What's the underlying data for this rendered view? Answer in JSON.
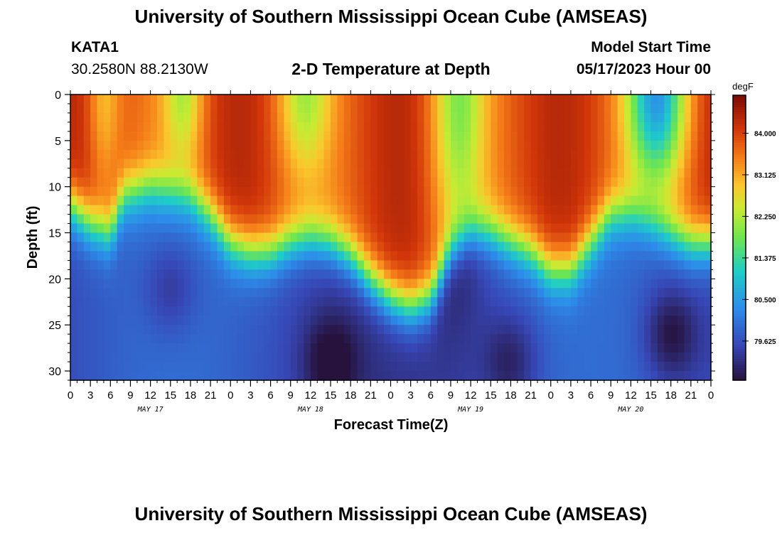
{
  "page": {
    "title": "University of Southern Mississippi Ocean Cube (AMSEAS)",
    "title_repeat": "University of Southern Mississippi Ocean Cube (AMSEAS)",
    "station_id": "KATA1",
    "station_coords": "30.2580N  88.2130W",
    "model_start_label": "Model Start Time",
    "model_start_value": "05/17/2023 Hour 00"
  },
  "chart_data": {
    "type": "heatmap",
    "title": "2-D Temperature at Depth",
    "xlabel": "Forecast Time(Z)",
    "ylabel": "Depth (ft)",
    "units": "degF",
    "x_hours_range": [
      0,
      96
    ],
    "y_depth_range": [
      0,
      31
    ],
    "x_tick_labels": [
      "0",
      "3",
      "6",
      "9",
      "12",
      "15",
      "18",
      "21",
      "0",
      "3",
      "6",
      "9",
      "12",
      "15",
      "18",
      "21",
      "0",
      "3",
      "6",
      "9",
      "12",
      "15",
      "18",
      "21",
      "0",
      "3",
      "6",
      "9",
      "12",
      "15",
      "18",
      "21",
      "0"
    ],
    "x_tick_hours": [
      0,
      3,
      6,
      9,
      12,
      15,
      18,
      21,
      24,
      27,
      30,
      33,
      36,
      39,
      42,
      45,
      48,
      51,
      54,
      57,
      60,
      63,
      66,
      69,
      72,
      75,
      78,
      81,
      84,
      87,
      90,
      93,
      96
    ],
    "day_labels": [
      {
        "label": "MAY 17",
        "hour": 12
      },
      {
        "label": "MAY 18",
        "hour": 36
      },
      {
        "label": "MAY 19",
        "hour": 60
      },
      {
        "label": "MAY 20",
        "hour": 84
      }
    ],
    "y_tick_values": [
      0,
      5,
      10,
      15,
      20,
      25,
      30
    ],
    "y_tick_labels": [
      "0",
      "5",
      "10",
      "15",
      "20",
      "25",
      "30"
    ],
    "colorbar": {
      "label": "degF",
      "range": [
        78.8,
        84.8
      ],
      "tick_values": [
        84.0,
        83.125,
        82.25,
        81.375,
        80.5,
        79.625
      ],
      "tick_labels": [
        "84.000",
        "83.125",
        "82.250",
        "81.375",
        "80.500",
        "79.625"
      ]
    },
    "thermocline_depth_ft": [
      {
        "hour": 0,
        "depth": 12
      },
      {
        "hour": 3,
        "depth": 14
      },
      {
        "hour": 6,
        "depth": 15
      },
      {
        "hour": 8,
        "depth": 11
      },
      {
        "hour": 12,
        "depth": 10
      },
      {
        "hour": 18,
        "depth": 11
      },
      {
        "hour": 21,
        "depth": 13
      },
      {
        "hour": 24,
        "depth": 16
      },
      {
        "hour": 27,
        "depth": 17
      },
      {
        "hour": 30,
        "depth": 17
      },
      {
        "hour": 33,
        "depth": 16
      },
      {
        "hour": 36,
        "depth": 15.5
      },
      {
        "hour": 39,
        "depth": 16
      },
      {
        "hour": 42,
        "depth": 17.5
      },
      {
        "hour": 45,
        "depth": 20
      },
      {
        "hour": 48,
        "depth": 22
      },
      {
        "hour": 51,
        "depth": 23
      },
      {
        "hour": 54,
        "depth": 22
      },
      {
        "hour": 57,
        "depth": 17
      },
      {
        "hour": 60,
        "depth": 15
      },
      {
        "hour": 63,
        "depth": 15
      },
      {
        "hour": 66,
        "depth": 16
      },
      {
        "hour": 69,
        "depth": 17
      },
      {
        "hour": 72,
        "depth": 19
      },
      {
        "hour": 75,
        "depth": 19
      },
      {
        "hour": 78,
        "depth": 16
      },
      {
        "hour": 81,
        "depth": 13
      },
      {
        "hour": 84,
        "depth": 13
      },
      {
        "hour": 87,
        "depth": 14
      },
      {
        "hour": 90,
        "depth": 15
      },
      {
        "hour": 93,
        "depth": 16
      },
      {
        "hour": 96,
        "depth": 16
      }
    ],
    "surface_cool_bands": [
      {
        "hour": 5,
        "width": 2.5,
        "depth": 11,
        "strength": 0.35
      },
      {
        "hour": 17,
        "width": 3,
        "depth": 8,
        "strength": 0.45
      },
      {
        "hour": 35,
        "width": 4,
        "depth": 9,
        "strength": 0.45
      },
      {
        "hour": 58,
        "width": 4,
        "depth": 17,
        "strength": 0.55
      },
      {
        "hour": 88,
        "width": 4.5,
        "depth": 10,
        "strength": 1.0
      }
    ],
    "deep_cold_cores": [
      {
        "hour": 15,
        "depth": 21,
        "strength": 0.6
      },
      {
        "hour": 39,
        "depth": 29,
        "strength": 0.9
      },
      {
        "hour": 66,
        "depth": 29,
        "strength": 0.75
      },
      {
        "hour": 90,
        "depth": 26,
        "strength": 1.0
      }
    ]
  }
}
